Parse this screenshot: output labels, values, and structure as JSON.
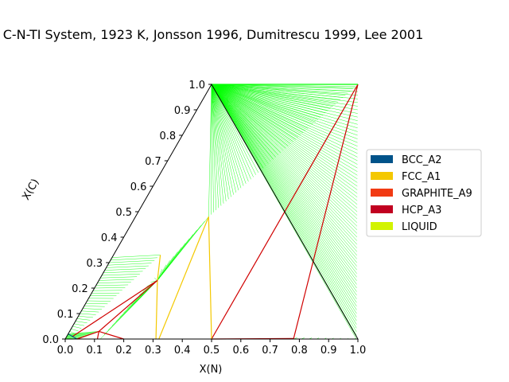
{
  "chart_data": {
    "type": "ternary-phase-diagram",
    "title": "C-N-TI System, 1923 K, Jonsson 1996, Dumitrescu 1999, Lee 2001",
    "xlabel": "X(N)",
    "ylabel": "X(C)",
    "xlim": [
      0.0,
      1.0
    ],
    "ylim": [
      0.0,
      1.0
    ],
    "x_ticks": [
      "0.0",
      "0.1",
      "0.2",
      "0.3",
      "0.4",
      "0.5",
      "0.6",
      "0.7",
      "0.8",
      "0.9",
      "1.0"
    ],
    "y_ticks": [
      "0.0",
      "0.1",
      "0.2",
      "0.3",
      "0.4",
      "0.5",
      "0.6",
      "0.7",
      "0.8",
      "0.9",
      "1.0"
    ],
    "legend_position": "right",
    "legend": [
      {
        "name": "BCC_A2",
        "color": "#00538a"
      },
      {
        "name": "FCC_A1",
        "color": "#f4c800"
      },
      {
        "name": "GRAPHITE_A9",
        "color": "#f13a13"
      },
      {
        "name": "HCP_A3",
        "color": "#c10020"
      },
      {
        "name": "LIQUID",
        "color": "#d2f300"
      }
    ],
    "tieline_color": "#00ff00",
    "boundary_color": "#d00000",
    "regions": [
      {
        "type": "three-phase",
        "vertices": [
          [
            0.5,
            0.0
          ],
          [
            0.5,
            1.0
          ],
          [
            0.0,
            1.0
          ]
        ]
      },
      {
        "type": "three-phase",
        "vertices": [
          [
            0.5,
            0.0
          ],
          [
            0.25,
            0.48
          ],
          [
            0.32,
            0.0
          ]
        ]
      },
      {
        "type": "three-phase",
        "vertices": [
          [
            0.2,
            0.0
          ],
          [
            0.2,
            0.23
          ],
          [
            0.16,
            0.33
          ]
        ]
      },
      {
        "type": "three-phase",
        "vertices": [
          [
            0.1,
            0.03
          ],
          [
            0.2,
            0.0
          ],
          [
            0.2,
            0.23
          ]
        ]
      },
      {
        "type": "three-phase",
        "vertices": [
          [
            0.78,
            0.0
          ],
          [
            0.5,
            0.0
          ],
          [
            0.5,
            1.0
          ]
        ]
      }
    ],
    "tieline_fans": [
      {
        "from": [
          0.0,
          1.0
        ],
        "to_start": [
          0.5,
          0.0
        ],
        "to_end": [
          0.5,
          1.0
        ],
        "count": 0
      },
      {
        "from": [
          0.0,
          1.0
        ],
        "to_start": [
          0.5,
          0.5
        ],
        "to_end": [
          0.5,
          1.0
        ],
        "count": 0
      }
    ]
  }
}
